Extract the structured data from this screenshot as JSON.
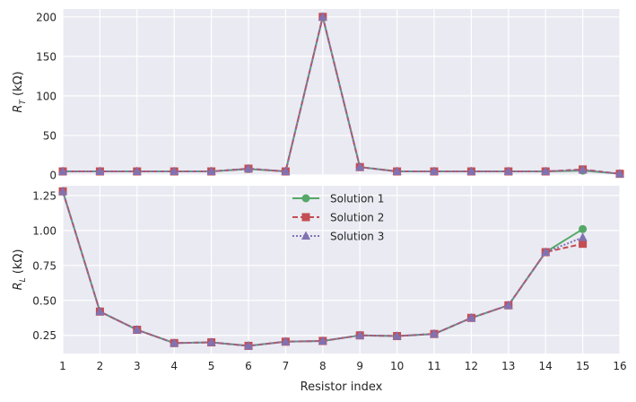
{
  "chart_data": [
    {
      "type": "line",
      "ylabel_main": "R",
      "ylabel_sub": "T",
      "ylabel_unit": " (kΩ)",
      "ylim": [
        0,
        210
      ],
      "yticks": [
        0,
        50,
        100,
        150,
        200
      ],
      "xlim": [
        1,
        16
      ],
      "x": [
        1,
        2,
        3,
        4,
        5,
        6,
        7,
        8,
        9,
        10,
        11,
        12,
        13,
        14,
        15,
        16
      ],
      "series": [
        {
          "name": "Solution 1",
          "color": "#55a868",
          "dash": "",
          "marker": "circle",
          "values": [
            4.5,
            4.5,
            4.5,
            4.5,
            4.5,
            7.5,
            4.5,
            200,
            10,
            4.5,
            4.5,
            4.5,
            4.5,
            4.5,
            5.5,
            1.5
          ]
        },
        {
          "name": "Solution 2",
          "color": "#c44e52",
          "dash": "6,3",
          "marker": "square",
          "values": [
            4.5,
            4.5,
            4.5,
            4.5,
            4.5,
            8,
            4.5,
            200,
            10,
            4.5,
            4.5,
            4.5,
            4.5,
            4.5,
            7,
            1.5
          ]
        },
        {
          "name": "Solution 3",
          "color": "#8172b2",
          "dash": "2,2",
          "marker": "triangle",
          "values": [
            4.5,
            4.5,
            4.5,
            4.5,
            4.5,
            8,
            4.5,
            200,
            10,
            4.5,
            4.5,
            4.5,
            4.5,
            4.5,
            6.5,
            1.5
          ]
        }
      ]
    },
    {
      "type": "line",
      "ylabel_main": "R",
      "ylabel_sub": "L",
      "ylabel_unit": " (kΩ)",
      "xlabel": "Resistor index",
      "ylim": [
        0.12,
        1.32
      ],
      "yticks": [
        0.25,
        0.5,
        0.75,
        1.0,
        1.25
      ],
      "ytick_labels": [
        "0.25",
        "0.50",
        "0.75",
        "1.00",
        "1.25"
      ],
      "xlim": [
        1,
        16
      ],
      "x": [
        1,
        2,
        3,
        4,
        5,
        6,
        7,
        8,
        9,
        10,
        11,
        12,
        13,
        14,
        15
      ],
      "xticks": [
        1,
        2,
        3,
        4,
        5,
        6,
        7,
        8,
        9,
        10,
        11,
        12,
        13,
        14,
        15,
        16
      ],
      "legend": "upper-center",
      "series": [
        {
          "name": "Solution 1",
          "color": "#55a868",
          "dash": "",
          "marker": "circle",
          "values": [
            1.28,
            0.42,
            0.29,
            0.195,
            0.2,
            0.175,
            0.205,
            0.21,
            0.25,
            0.245,
            0.26,
            0.375,
            0.465,
            0.845,
            1.01
          ]
        },
        {
          "name": "Solution 2",
          "color": "#c44e52",
          "dash": "6,3",
          "marker": "square",
          "values": [
            1.28,
            0.42,
            0.29,
            0.195,
            0.2,
            0.175,
            0.205,
            0.21,
            0.25,
            0.245,
            0.26,
            0.375,
            0.465,
            0.845,
            0.905
          ]
        },
        {
          "name": "Solution 3",
          "color": "#8172b2",
          "dash": "2,2",
          "marker": "triangle",
          "values": [
            1.28,
            0.42,
            0.29,
            0.195,
            0.2,
            0.175,
            0.205,
            0.21,
            0.25,
            0.245,
            0.26,
            0.375,
            0.465,
            0.845,
            0.95
          ]
        }
      ]
    }
  ]
}
